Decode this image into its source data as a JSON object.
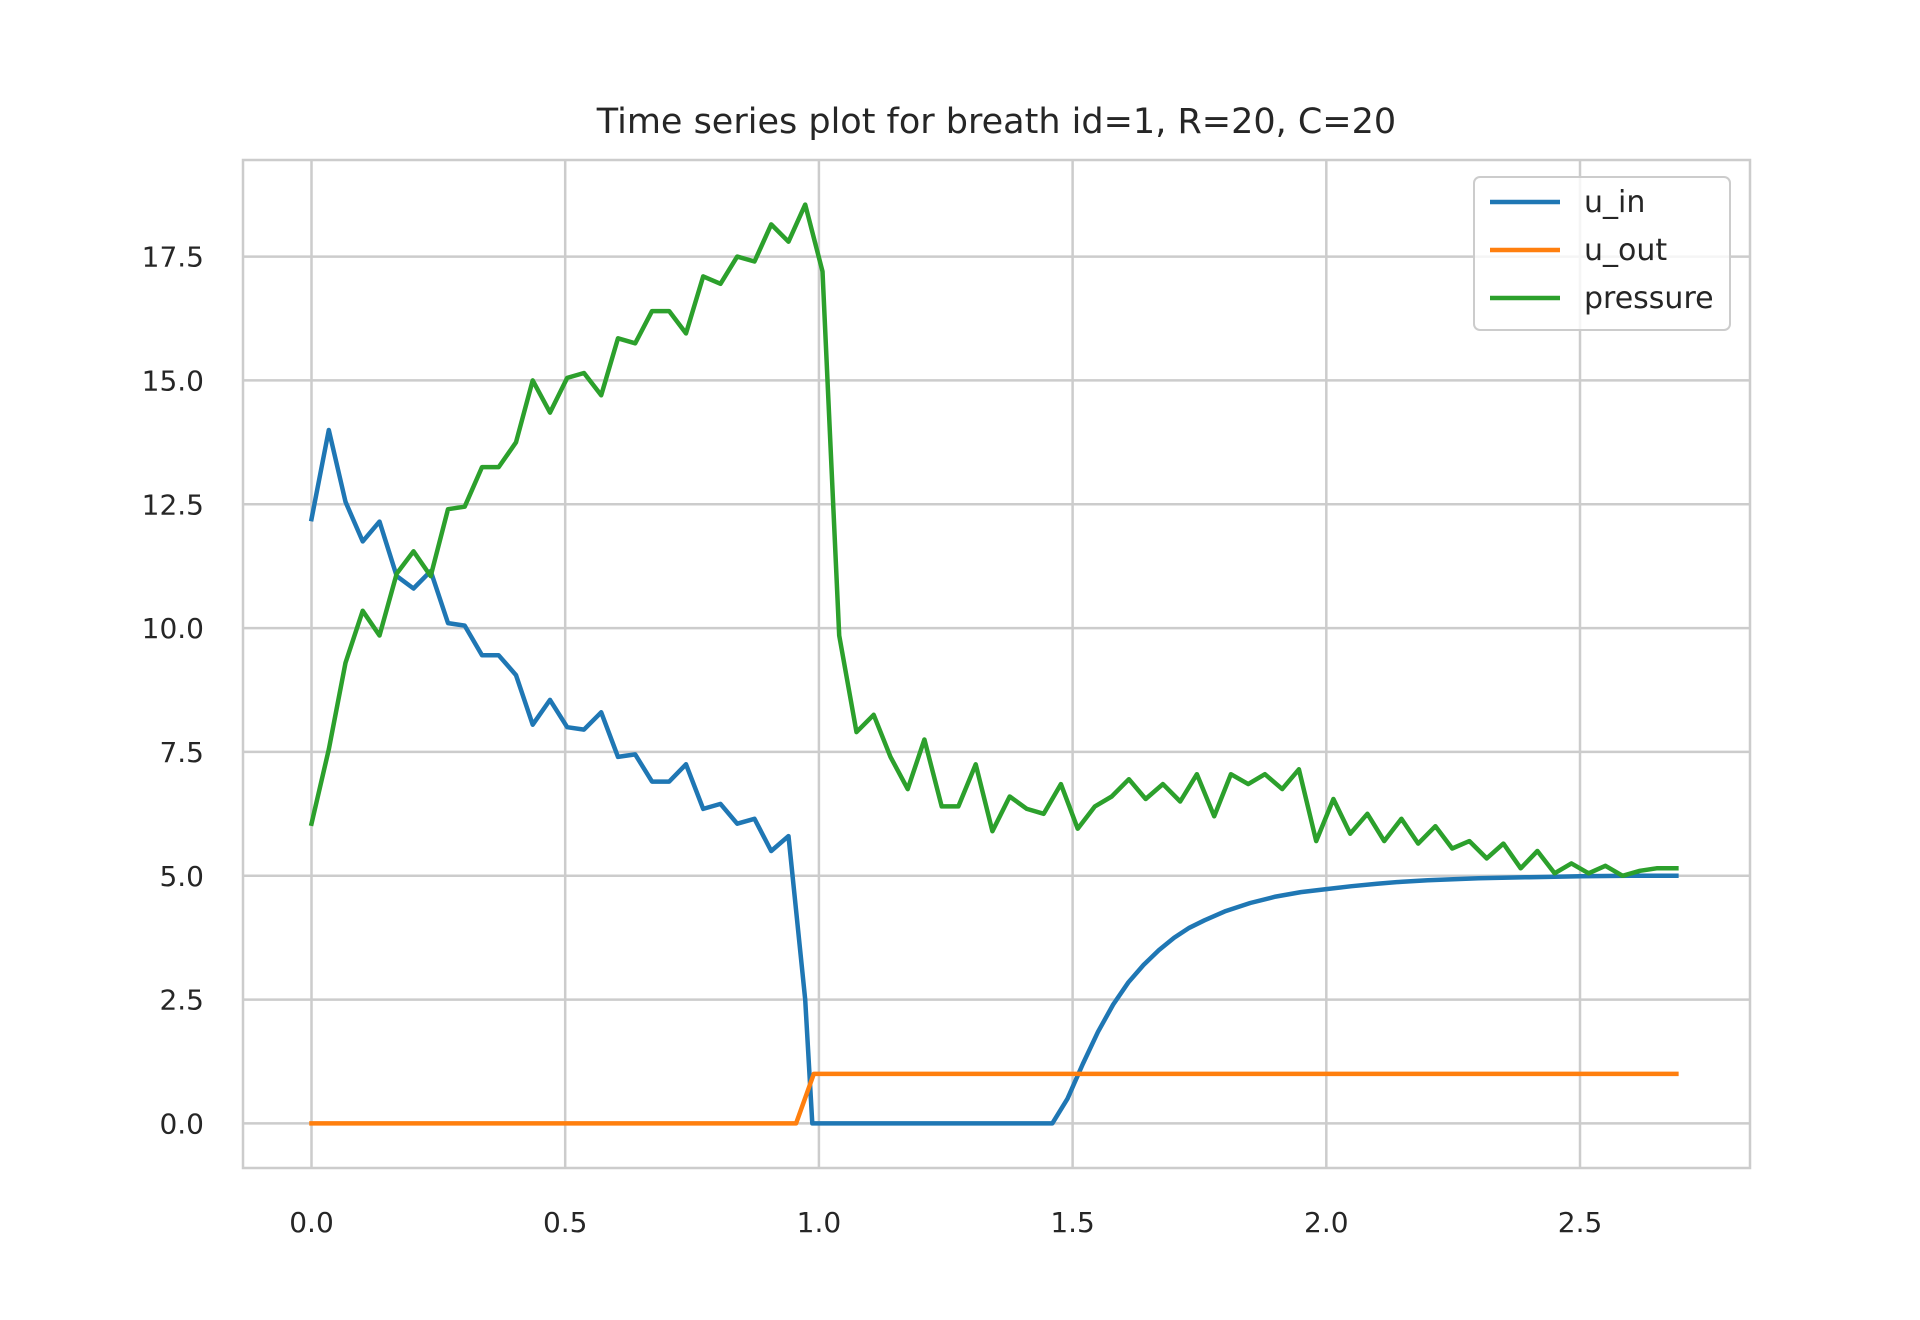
{
  "chart_data": {
    "type": "line",
    "title": "Time series plot for breath id=1, R=20, C=20",
    "xlabel": "",
    "ylabel": "",
    "xlim": [
      -0.135,
      2.835
    ],
    "ylim": [
      -0.9,
      19.45
    ],
    "xticks": [
      0.0,
      0.5,
      1.0,
      1.5,
      2.0,
      2.5
    ],
    "xtick_labels": [
      "0.0",
      "0.5",
      "1.0",
      "1.5",
      "2.0",
      "2.5"
    ],
    "yticks": [
      0.0,
      2.5,
      5.0,
      7.5,
      10.0,
      12.5,
      15.0,
      17.5
    ],
    "ytick_labels": [
      "0.0",
      "2.5",
      "5.0",
      "7.5",
      "10.0",
      "12.5",
      "15.0",
      "17.5"
    ],
    "grid": true,
    "legend_position": "top-right",
    "series": [
      {
        "name": "u_in",
        "color": "#1f77b4",
        "x": [
          0.0,
          0.034,
          0.067,
          0.101,
          0.134,
          0.168,
          0.201,
          0.235,
          0.269,
          0.302,
          0.336,
          0.369,
          0.403,
          0.436,
          0.47,
          0.504,
          0.537,
          0.571,
          0.604,
          0.638,
          0.671,
          0.705,
          0.738,
          0.772,
          0.806,
          0.839,
          0.873,
          0.906,
          0.94,
          0.973,
          0.987,
          1.02,
          1.1,
          1.2,
          1.3,
          1.4,
          1.46,
          1.49,
          1.52,
          1.55,
          1.58,
          1.61,
          1.64,
          1.67,
          1.7,
          1.73,
          1.76,
          1.8,
          1.85,
          1.9,
          1.95,
          2.0,
          2.05,
          2.1,
          2.15,
          2.2,
          2.3,
          2.4,
          2.5,
          2.6,
          2.69
        ],
        "y": [
          12.2,
          14.0,
          12.55,
          11.75,
          12.15,
          11.05,
          10.8,
          11.15,
          10.1,
          10.05,
          9.45,
          9.45,
          9.05,
          8.05,
          8.55,
          8.0,
          7.95,
          8.3,
          7.4,
          7.45,
          6.9,
          6.9,
          7.25,
          6.35,
          6.45,
          6.05,
          6.15,
          5.5,
          5.8,
          2.5,
          0.0,
          0.0,
          0.0,
          0.0,
          0.0,
          0.0,
          0.0,
          0.5,
          1.2,
          1.85,
          2.4,
          2.85,
          3.2,
          3.5,
          3.75,
          3.95,
          4.1,
          4.28,
          4.45,
          4.58,
          4.67,
          4.73,
          4.79,
          4.84,
          4.88,
          4.91,
          4.95,
          4.97,
          4.99,
          5.0,
          5.0
        ]
      },
      {
        "name": "u_out",
        "color": "#ff7f0e",
        "x": [
          0.0,
          0.955,
          0.99,
          2.69
        ],
        "y": [
          0.0,
          0.0,
          1.0,
          1.0
        ]
      },
      {
        "name": "pressure",
        "color": "#2ca02c",
        "x": [
          0.0,
          0.034,
          0.067,
          0.101,
          0.134,
          0.168,
          0.201,
          0.235,
          0.269,
          0.302,
          0.336,
          0.369,
          0.403,
          0.436,
          0.47,
          0.504,
          0.537,
          0.571,
          0.604,
          0.638,
          0.671,
          0.705,
          0.738,
          0.772,
          0.806,
          0.839,
          0.873,
          0.906,
          0.94,
          0.973,
          1.007,
          1.04,
          1.074,
          1.108,
          1.141,
          1.175,
          1.208,
          1.242,
          1.275,
          1.309,
          1.342,
          1.376,
          1.41,
          1.443,
          1.477,
          1.51,
          1.544,
          1.577,
          1.611,
          1.644,
          1.678,
          1.712,
          1.745,
          1.779,
          1.812,
          1.846,
          1.879,
          1.913,
          1.946,
          1.98,
          2.014,
          2.047,
          2.081,
          2.114,
          2.148,
          2.181,
          2.215,
          2.248,
          2.282,
          2.316,
          2.349,
          2.383,
          2.416,
          2.45,
          2.483,
          2.517,
          2.55,
          2.584,
          2.618,
          2.651,
          2.69
        ],
        "y": [
          6.05,
          7.55,
          9.3,
          10.35,
          9.85,
          11.1,
          11.55,
          11.05,
          12.4,
          12.45,
          13.25,
          13.25,
          13.75,
          15.0,
          14.35,
          15.05,
          15.15,
          14.7,
          15.85,
          15.75,
          16.4,
          16.4,
          15.95,
          17.1,
          16.95,
          17.5,
          17.4,
          18.15,
          17.8,
          18.55,
          17.2,
          9.85,
          7.9,
          8.25,
          7.4,
          6.75,
          7.75,
          6.4,
          6.4,
          7.25,
          5.9,
          6.6,
          6.35,
          6.25,
          6.85,
          5.95,
          6.4,
          6.6,
          6.95,
          6.55,
          6.85,
          6.5,
          7.05,
          6.2,
          7.05,
          6.85,
          7.05,
          6.75,
          7.15,
          5.7,
          6.55,
          5.85,
          6.25,
          5.7,
          6.15,
          5.65,
          6.0,
          5.55,
          5.7,
          5.35,
          5.65,
          5.15,
          5.5,
          5.05,
          5.25,
          5.05,
          5.2,
          5.0,
          5.1,
          5.15,
          5.15
        ]
      }
    ]
  }
}
